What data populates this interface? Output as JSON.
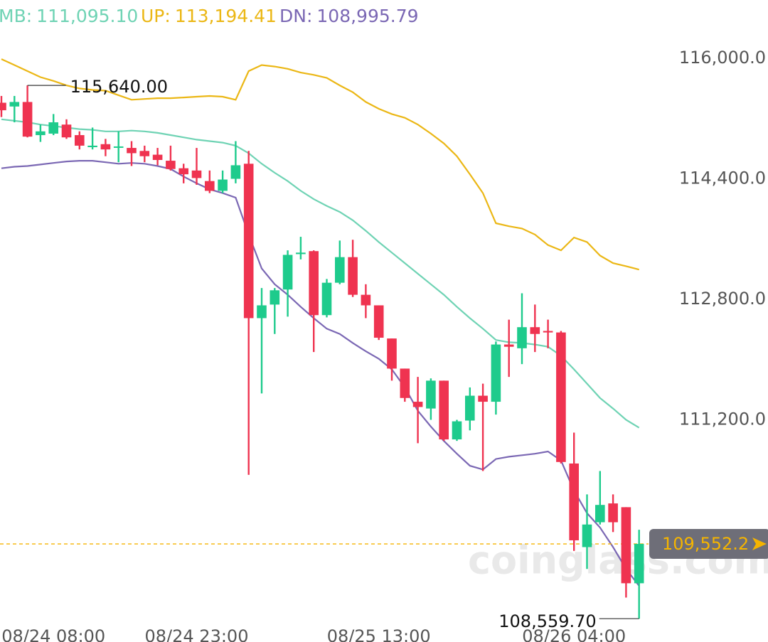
{
  "chart_data": {
    "type": "candlestick",
    "categories": [
      null,
      null,
      null,
      null,
      "08/24 08:00",
      null,
      null,
      null,
      null,
      null,
      null,
      null,
      null,
      null,
      null,
      "08/24 23:00",
      null,
      null,
      null,
      null,
      null,
      null,
      null,
      null,
      null,
      null,
      null,
      null,
      null,
      "08/25 13:00",
      null,
      null,
      null,
      null,
      null,
      null,
      null,
      null,
      null,
      null,
      null,
      null,
      null,
      null,
      "08/26 04:00",
      null,
      null,
      null,
      null,
      null
    ],
    "open": [
      115410,
      115360,
      115420,
      114980,
      115000,
      115120,
      114980,
      114820,
      114860,
      114820,
      114810,
      114770,
      114720,
      114640,
      114540,
      114510,
      114370,
      114240,
      114400,
      114600,
      112550,
      112730,
      112930,
      113400,
      113440,
      112590,
      113020,
      113360,
      112860,
      112720,
      112280,
      111880,
      111440,
      111350,
      111720,
      110940,
      111190,
      111520,
      111440,
      112200,
      112150,
      112430,
      112380,
      112360,
      110620,
      109510,
      109840,
      110090,
      110040,
      109030
    ],
    "high": [
      115500,
      115500,
      115640,
      115120,
      115260,
      115190,
      115030,
      115080,
      114930,
      115030,
      114900,
      114840,
      114810,
      114840,
      114600,
      114810,
      114510,
      114510,
      114900,
      114770,
      112950,
      112950,
      113450,
      113630,
      113450,
      113070,
      113580,
      113590,
      113000,
      112720,
      112280,
      111880,
      111770,
      111750,
      111720,
      111200,
      111630,
      111680,
      112240,
      112530,
      112880,
      112730,
      112530,
      112380,
      111030,
      110210,
      110520,
      110210,
      110040,
      109740
    ],
    "low": [
      115220,
      115150,
      114950,
      114890,
      114980,
      114930,
      114790,
      114790,
      114700,
      114620,
      114570,
      114620,
      114580,
      114510,
      114340,
      114320,
      114210,
      114210,
      114340,
      110470,
      111550,
      112340,
      112570,
      113330,
      112100,
      112560,
      113000,
      112830,
      112550,
      112260,
      111720,
      111440,
      110890,
      111200,
      110920,
      110920,
      111060,
      110520,
      111270,
      111770,
      111940,
      112100,
      112150,
      110620,
      109460,
      109220,
      109810,
      109710,
      108840,
      108559.7
    ],
    "close": [
      115310,
      115420,
      114960,
      115030,
      115150,
      114950,
      114840,
      114840,
      114790,
      114830,
      114740,
      114700,
      114650,
      114530,
      114460,
      114410,
      114240,
      114390,
      114580,
      112550,
      112720,
      112920,
      113390,
      113420,
      112590,
      113020,
      113360,
      112860,
      112720,
      112290,
      111880,
      111490,
      111370,
      111720,
      110940,
      111180,
      111520,
      111440,
      112200,
      112170,
      112430,
      112340,
      112360,
      110640,
      109600,
      109810,
      110070,
      109840,
      109030,
      109552.2
    ],
    "up_color": "#1ecb8c",
    "down_color": "#ef3350",
    "series": [
      {
        "name": "MB",
        "color": "#6fd3b4",
        "values": [
          115190,
          115170,
          115150,
          115120,
          115100,
          115080,
          115060,
          115050,
          115030,
          115030,
          115040,
          115030,
          115010,
          114980,
          114950,
          114920,
          114900,
          114880,
          114840,
          114740,
          114600,
          114480,
          114370,
          114240,
          114130,
          114040,
          113960,
          113850,
          113710,
          113560,
          113420,
          113280,
          113140,
          113000,
          112860,
          112700,
          112550,
          112410,
          112260,
          112230,
          112220,
          112200,
          112170,
          112050,
          111870,
          111680,
          111490,
          111350,
          111200,
          111095.1
        ],
        "value_labels": [
          null,
          null,
          null,
          null,
          null,
          null,
          null,
          null,
          null,
          null,
          null,
          null,
          null,
          null,
          null,
          null,
          null,
          null,
          null,
          null,
          null,
          null,
          null,
          null,
          null,
          null,
          null,
          null,
          null,
          null,
          null,
          null,
          null,
          null,
          null,
          null,
          null,
          null,
          null,
          null,
          null,
          null,
          null,
          null,
          null,
          null,
          null,
          null,
          null,
          "111,095.10"
        ]
      },
      {
        "name": "UP",
        "color": "#ebb715",
        "values": [
          115990,
          115910,
          115830,
          115750,
          115700,
          115640,
          115600,
          115580,
          115570,
          115510,
          115450,
          115460,
          115470,
          115470,
          115480,
          115490,
          115500,
          115490,
          115450,
          115830,
          115910,
          115890,
          115860,
          115810,
          115780,
          115740,
          115640,
          115550,
          115420,
          115330,
          115260,
          115210,
          115120,
          115000,
          114870,
          114700,
          114460,
          114210,
          113810,
          113770,
          113740,
          113660,
          113520,
          113450,
          113620,
          113560,
          113380,
          113280,
          113240,
          113194.41
        ],
        "value_labels": [
          null,
          null,
          null,
          null,
          null,
          null,
          null,
          null,
          null,
          null,
          null,
          null,
          null,
          null,
          null,
          null,
          null,
          null,
          null,
          null,
          null,
          null,
          null,
          null,
          null,
          null,
          null,
          null,
          null,
          null,
          null,
          null,
          null,
          null,
          null,
          null,
          null,
          null,
          null,
          null,
          null,
          null,
          null,
          null,
          null,
          null,
          null,
          null,
          null,
          "113,194.41"
        ]
      },
      {
        "name": "DN",
        "color": "#7b68b4",
        "values": [
          114540,
          114560,
          114570,
          114590,
          114610,
          114630,
          114640,
          114640,
          114620,
          114600,
          114610,
          114600,
          114570,
          114530,
          114430,
          114340,
          114260,
          114210,
          114150,
          113660,
          113210,
          113000,
          112860,
          112700,
          112550,
          112410,
          112340,
          112220,
          112110,
          112010,
          111870,
          111630,
          111320,
          111110,
          110920,
          110750,
          110590,
          110540,
          110680,
          110710,
          110730,
          110750,
          110780,
          110660,
          110260,
          109960,
          109770,
          109510,
          109220,
          108995.79
        ],
        "value_labels": [
          null,
          null,
          null,
          null,
          null,
          null,
          null,
          null,
          null,
          null,
          null,
          null,
          null,
          null,
          null,
          null,
          null,
          null,
          null,
          null,
          null,
          null,
          null,
          null,
          null,
          null,
          null,
          null,
          null,
          null,
          null,
          null,
          null,
          null,
          null,
          null,
          null,
          null,
          null,
          null,
          null,
          null,
          null,
          null,
          null,
          null,
          null,
          null,
          null,
          "108,995.79"
        ]
      }
    ],
    "ylim": [
      108250,
      116774
    ],
    "yticks": [
      {
        "value": 116000,
        "label": "116,000.0"
      },
      {
        "value": 114400,
        "label": "114,400.0"
      },
      {
        "value": 112800,
        "label": "112,800.0"
      },
      {
        "value": 111200,
        "label": "111,200.0"
      }
    ],
    "grid": false,
    "annotations": [
      {
        "value": 115640,
        "label": "115,640.00"
      },
      {
        "value": 108559.7,
        "label": "108,559.70"
      }
    ],
    "last_price": {
      "value": 109552.2,
      "label": "109,552.2",
      "color": "#f5b400"
    },
    "watermark": "coinglass.com"
  }
}
